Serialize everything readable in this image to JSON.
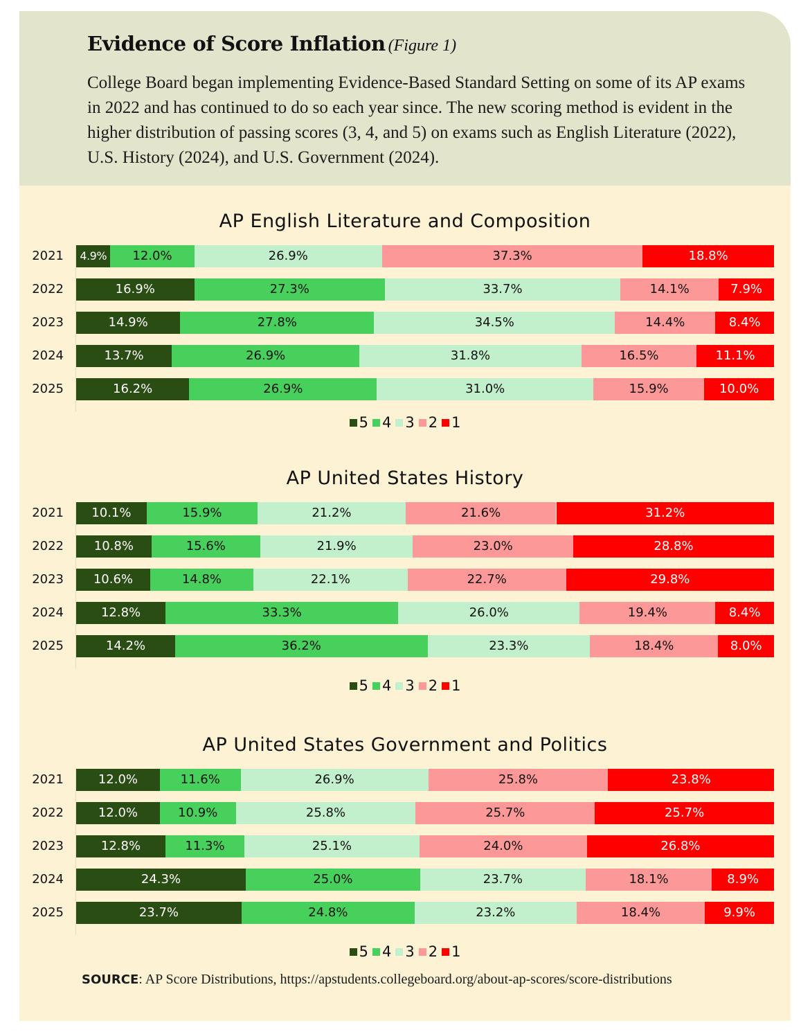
{
  "header": {
    "title": "Evidence of Score Inflation",
    "figure_label": "(Figure 1)",
    "intro": "College Board began implementing Evidence-Based Standard Setting on some of its AP exams in 2022 and has continued to do so each year since. The new scoring method is evident in the higher distribution of passing scores (3, 4, and 5) on exams such as English Literature (2022), U.S. History (2024), and U.S. Government (2024)."
  },
  "colors": {
    "5": "#2a4d14",
    "4": "#47d05b",
    "3": "#c2efcc",
    "2": "#fd9898",
    "1": "#fe0000"
  },
  "label_colors": {
    "5": "#ffffff",
    "4": "#111111",
    "3": "#111111",
    "2": "#111111",
    "1": "#ffffff"
  },
  "legend": [
    "5",
    "4",
    "3",
    "2",
    "1"
  ],
  "source": {
    "label": "SOURCE",
    "text": ": AP Score Distributions, https://apstudents.collegeboard.org/about-ap-scores/score-distributions"
  },
  "chart_data": [
    {
      "type": "bar",
      "orientation": "horizontal-stacked-100",
      "title": "AP English Literature and Composition",
      "categories": [
        "2021",
        "2022",
        "2023",
        "2024",
        "2025"
      ],
      "series": [
        {
          "name": "5",
          "values": [
            4.9,
            16.9,
            14.9,
            13.7,
            16.2
          ]
        },
        {
          "name": "4",
          "values": [
            12.0,
            27.3,
            27.8,
            26.9,
            26.9
          ]
        },
        {
          "name": "3",
          "values": [
            26.9,
            33.7,
            34.5,
            31.8,
            31.0
          ]
        },
        {
          "name": "2",
          "values": [
            37.3,
            14.1,
            14.4,
            16.5,
            15.9
          ]
        },
        {
          "name": "1",
          "values": [
            18.8,
            7.9,
            8.4,
            11.1,
            10.0
          ]
        }
      ],
      "xlabel": "",
      "ylabel": "",
      "xlim": [
        0,
        100
      ],
      "legend": "bottom-center",
      "grid": false
    },
    {
      "type": "bar",
      "orientation": "horizontal-stacked-100",
      "title": "AP United States History",
      "categories": [
        "2021",
        "2022",
        "2023",
        "2024",
        "2025"
      ],
      "series": [
        {
          "name": "5",
          "values": [
            10.1,
            10.8,
            10.6,
            12.8,
            14.2
          ]
        },
        {
          "name": "4",
          "values": [
            15.9,
            15.6,
            14.8,
            33.3,
            36.2
          ]
        },
        {
          "name": "3",
          "values": [
            21.2,
            21.9,
            22.1,
            26.0,
            23.3
          ]
        },
        {
          "name": "2",
          "values": [
            21.6,
            23.0,
            22.7,
            19.4,
            18.4
          ]
        },
        {
          "name": "1",
          "values": [
            31.2,
            28.8,
            29.8,
            8.4,
            8.0
          ]
        }
      ],
      "xlabel": "",
      "ylabel": "",
      "xlim": [
        0,
        100
      ],
      "legend": "bottom-center",
      "grid": false
    },
    {
      "type": "bar",
      "orientation": "horizontal-stacked-100",
      "title": "AP United States Government and Politics",
      "categories": [
        "2021",
        "2022",
        "2023",
        "2024",
        "2025"
      ],
      "series": [
        {
          "name": "5",
          "values": [
            12.0,
            12.0,
            12.8,
            24.3,
            23.7
          ]
        },
        {
          "name": "4",
          "values": [
            11.6,
            10.9,
            11.3,
            25.0,
            24.8
          ]
        },
        {
          "name": "3",
          "values": [
            26.9,
            25.8,
            25.1,
            23.7,
            23.2
          ]
        },
        {
          "name": "2",
          "values": [
            25.8,
            25.7,
            24.0,
            18.1,
            18.4
          ]
        },
        {
          "name": "1",
          "values": [
            23.8,
            25.7,
            26.8,
            8.9,
            9.9
          ]
        }
      ],
      "xlabel": "",
      "ylabel": "",
      "xlim": [
        0,
        100
      ],
      "legend": "bottom-center",
      "grid": false
    }
  ]
}
